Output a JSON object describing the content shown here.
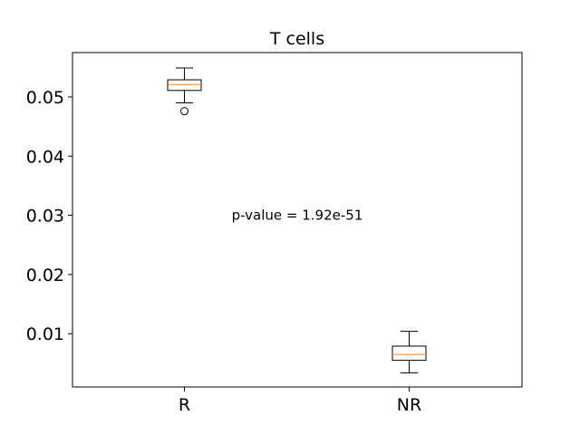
{
  "chart_data": {
    "type": "box",
    "title": "T cells",
    "xlabel": "",
    "ylabel": "",
    "categories": [
      "R",
      "NR"
    ],
    "ylim": [
      0.001,
      0.0575
    ],
    "yticks": [
      0.01,
      0.02,
      0.03,
      0.04,
      0.05
    ],
    "ytick_labels": [
      "0.01",
      "0.02",
      "0.03",
      "0.04",
      "0.05"
    ],
    "boxes": [
      {
        "label": "R",
        "whisker_low": 0.049,
        "q1": 0.0511,
        "median": 0.0521,
        "q3": 0.0529,
        "whisker_high": 0.0549,
        "outliers": [
          0.0476
        ]
      },
      {
        "label": "NR",
        "whisker_low": 0.0034,
        "q1": 0.0055,
        "median": 0.0065,
        "q3": 0.0079,
        "whisker_high": 0.0104,
        "outliers": []
      }
    ],
    "annotation": {
      "text": "p-value = 1.92e-51",
      "y": 0.03
    },
    "grid": false,
    "colors": {
      "box": "#000000",
      "median": "#ff7f0e",
      "background": "#ffffff"
    }
  }
}
